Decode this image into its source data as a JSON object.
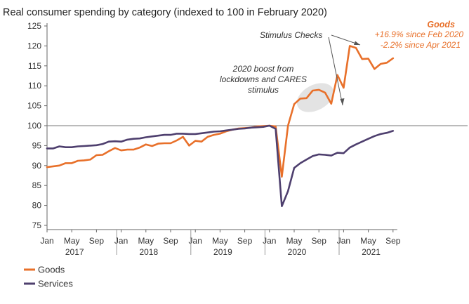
{
  "chart_data": {
    "type": "line",
    "title": "Real consumer spending by category (indexed to 100 in February 2020)",
    "xlabel": "",
    "ylabel": "",
    "ylim": [
      75,
      125
    ],
    "yticks": [
      75,
      80,
      85,
      90,
      95,
      100,
      105,
      110,
      115,
      120,
      125
    ],
    "reference_line": 100,
    "x_tick_labels": [
      "Jan",
      "May",
      "Sep",
      "Jan",
      "May",
      "Sep",
      "Jan",
      "May",
      "Sep",
      "Jan",
      "May",
      "Sep",
      "Jan",
      "May",
      "Sep"
    ],
    "x_tick_months": [
      0,
      4,
      8,
      12,
      16,
      20,
      24,
      28,
      32,
      36,
      40,
      44,
      48,
      52,
      56
    ],
    "year_labels": [
      {
        "label": "2017",
        "month": 4
      },
      {
        "label": "2018",
        "month": 16
      },
      {
        "label": "2019",
        "month": 28
      },
      {
        "label": "2020",
        "month": 40
      },
      {
        "label": "2021",
        "month": 52
      }
    ],
    "start": "2017-01",
    "series": [
      {
        "name": "Goods",
        "color": "#E8702A",
        "values": [
          89.6,
          89.8,
          90.0,
          90.6,
          90.6,
          91.2,
          91.3,
          91.5,
          92.6,
          92.7,
          93.6,
          94.4,
          93.8,
          94.0,
          94.0,
          94.5,
          95.3,
          94.9,
          95.5,
          95.6,
          95.6,
          96.3,
          97.2,
          95.0,
          96.2,
          96.0,
          97.2,
          97.7,
          98.0,
          98.6,
          99.0,
          99.3,
          99.4,
          99.5,
          99.8,
          99.9,
          100.0,
          99.8,
          87.2,
          100.0,
          105.4,
          106.8,
          106.9,
          108.8,
          109.0,
          108.3,
          105.5,
          112.7,
          109.5,
          120.0,
          119.5,
          116.7,
          116.8,
          114.2,
          115.5,
          115.8,
          116.9
        ]
      },
      {
        "name": "Services",
        "color": "#4E3F6E",
        "values": [
          94.3,
          94.3,
          94.8,
          94.6,
          94.6,
          94.8,
          94.9,
          95.0,
          95.1,
          95.4,
          96.0,
          96.1,
          96.0,
          96.5,
          96.7,
          96.8,
          97.1,
          97.3,
          97.5,
          97.7,
          97.7,
          98.0,
          98.0,
          97.9,
          97.9,
          98.1,
          98.3,
          98.5,
          98.6,
          98.8,
          99.0,
          99.2,
          99.3,
          99.5,
          99.6,
          99.7,
          100.0,
          99.2,
          79.8,
          83.6,
          89.4,
          90.6,
          91.5,
          92.4,
          92.8,
          92.7,
          92.5,
          93.2,
          93.1,
          94.5,
          95.3,
          96.0,
          96.7,
          97.4,
          97.9,
          98.2,
          98.7
        ]
      }
    ],
    "annotations": {
      "stimulus": "Stimulus Checks",
      "cares_line1": "2020 boost from",
      "cares_line2": "lockdowns and CARES",
      "cares_line3": "stimulus",
      "goods_title": "Goods",
      "goods_line1": "+16.9% since Feb 2020",
      "goods_line2": "-2.2% since Apr 2021"
    },
    "legend": {
      "placement": "bottom-left",
      "items": [
        {
          "label": "Goods",
          "color": "#E8702A"
        },
        {
          "label": "Services",
          "color": "#4E3F6E"
        }
      ]
    }
  }
}
